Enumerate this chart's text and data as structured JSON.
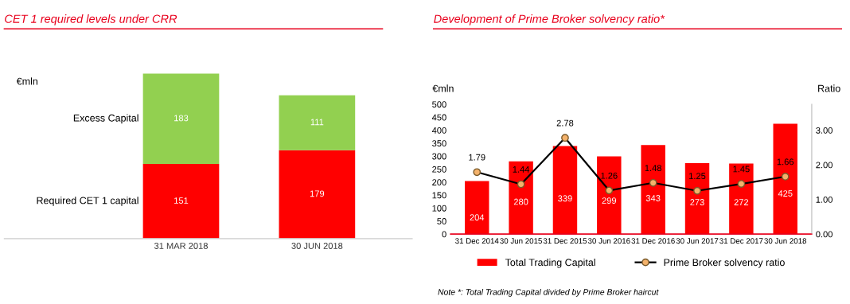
{
  "chart_data": [
    {
      "type": "bar",
      "title": "CET 1 required levels under CRR",
      "ylabel": "€mln",
      "categories": [
        "31 MAR 2018",
        "30 JUN 2018"
      ],
      "stacked": true,
      "data_labels": true,
      "grid": false,
      "legend": false,
      "tick_labels": "x",
      "series": [
        {
          "name": "Required CET 1 capital",
          "color": "#ff0000",
          "values": [
            151,
            179
          ]
        },
        {
          "name": "Excess Capital",
          "color": "#92d050",
          "values": [
            183,
            111
          ]
        }
      ]
    },
    {
      "type": "bar",
      "title": "Development of Prime Broker solvency ratio*",
      "ylabel": "€mln",
      "y2label": "Ratio",
      "categories": [
        "31 Dec 2014",
        "30 Jun 2015",
        "31 Dec 2015",
        "30 Jun 2016",
        "31 Dec 2016",
        "30 Jun 2017",
        "31 Dec 2017",
        "30 Jun 2018"
      ],
      "ylim": [
        0,
        500
      ],
      "yticks": [
        0,
        50,
        100,
        150,
        200,
        250,
        300,
        350,
        400,
        450,
        500
      ],
      "y2lim": [
        0,
        3.75
      ],
      "y2ticks": [
        {
          "value": 0,
          "label": "0.00"
        },
        {
          "value": 1,
          "label": "1.00"
        },
        {
          "value": 2,
          "label": "2.00"
        },
        {
          "value": 3,
          "label": "3.00"
        }
      ],
      "data_labels": true,
      "grid": false,
      "legend": "bottom",
      "marker": "circle",
      "line_style": "solid",
      "series": [
        {
          "name": "Total Trading Capital",
          "type": "bar",
          "color": "#ff0000",
          "values": [
            204,
            280,
            339,
            299,
            343,
            273,
            272,
            425
          ]
        },
        {
          "name": "Prime Broker solvency ratio",
          "type": "line",
          "axis": "y2",
          "color": "#000000",
          "values": [
            1.79,
            1.44,
            2.78,
            1.26,
            1.48,
            1.25,
            1.45,
            1.66
          ]
        }
      ],
      "annotations": [
        "Note *: Total Trading Capital divided by Prime Broker haircut"
      ]
    }
  ]
}
